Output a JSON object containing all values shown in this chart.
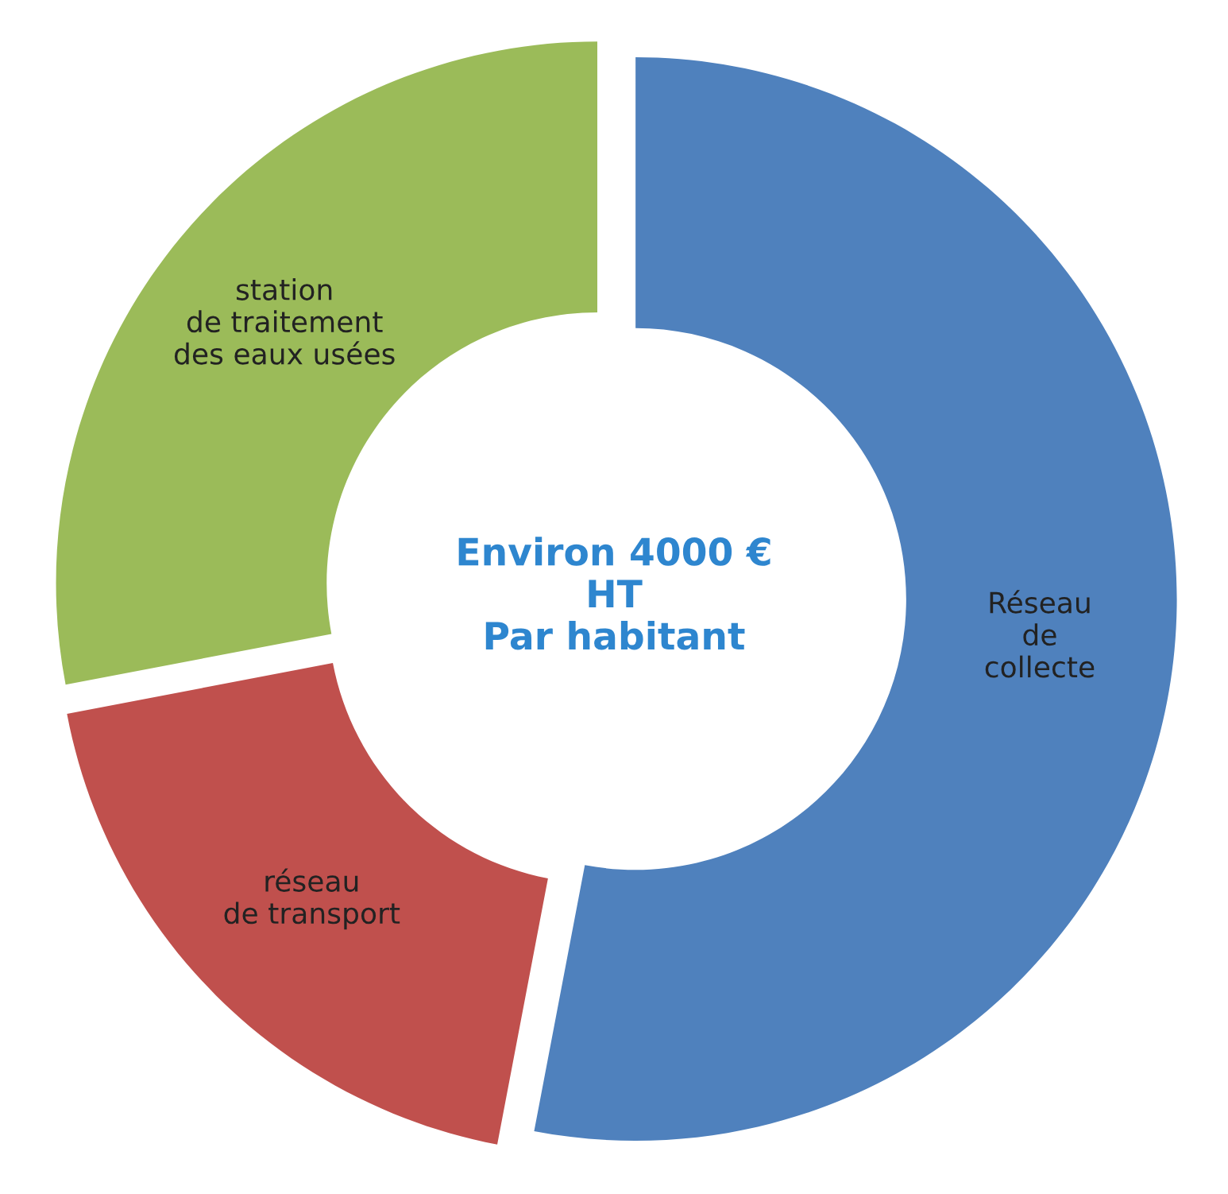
{
  "chart_data": {
    "type": "donut",
    "categories": [
      "Réseau\nde\ncollecte",
      "réseau\nde transport",
      "station\nde traitement\ndes eaux usées"
    ],
    "values": [
      53,
      19,
      28
    ],
    "colors": [
      "#4f81bd",
      "#c0504d",
      "#9bbb59"
    ],
    "annotations": [
      "Environ 4000 €\nHT\nPar habitant"
    ],
    "legend": false
  }
}
